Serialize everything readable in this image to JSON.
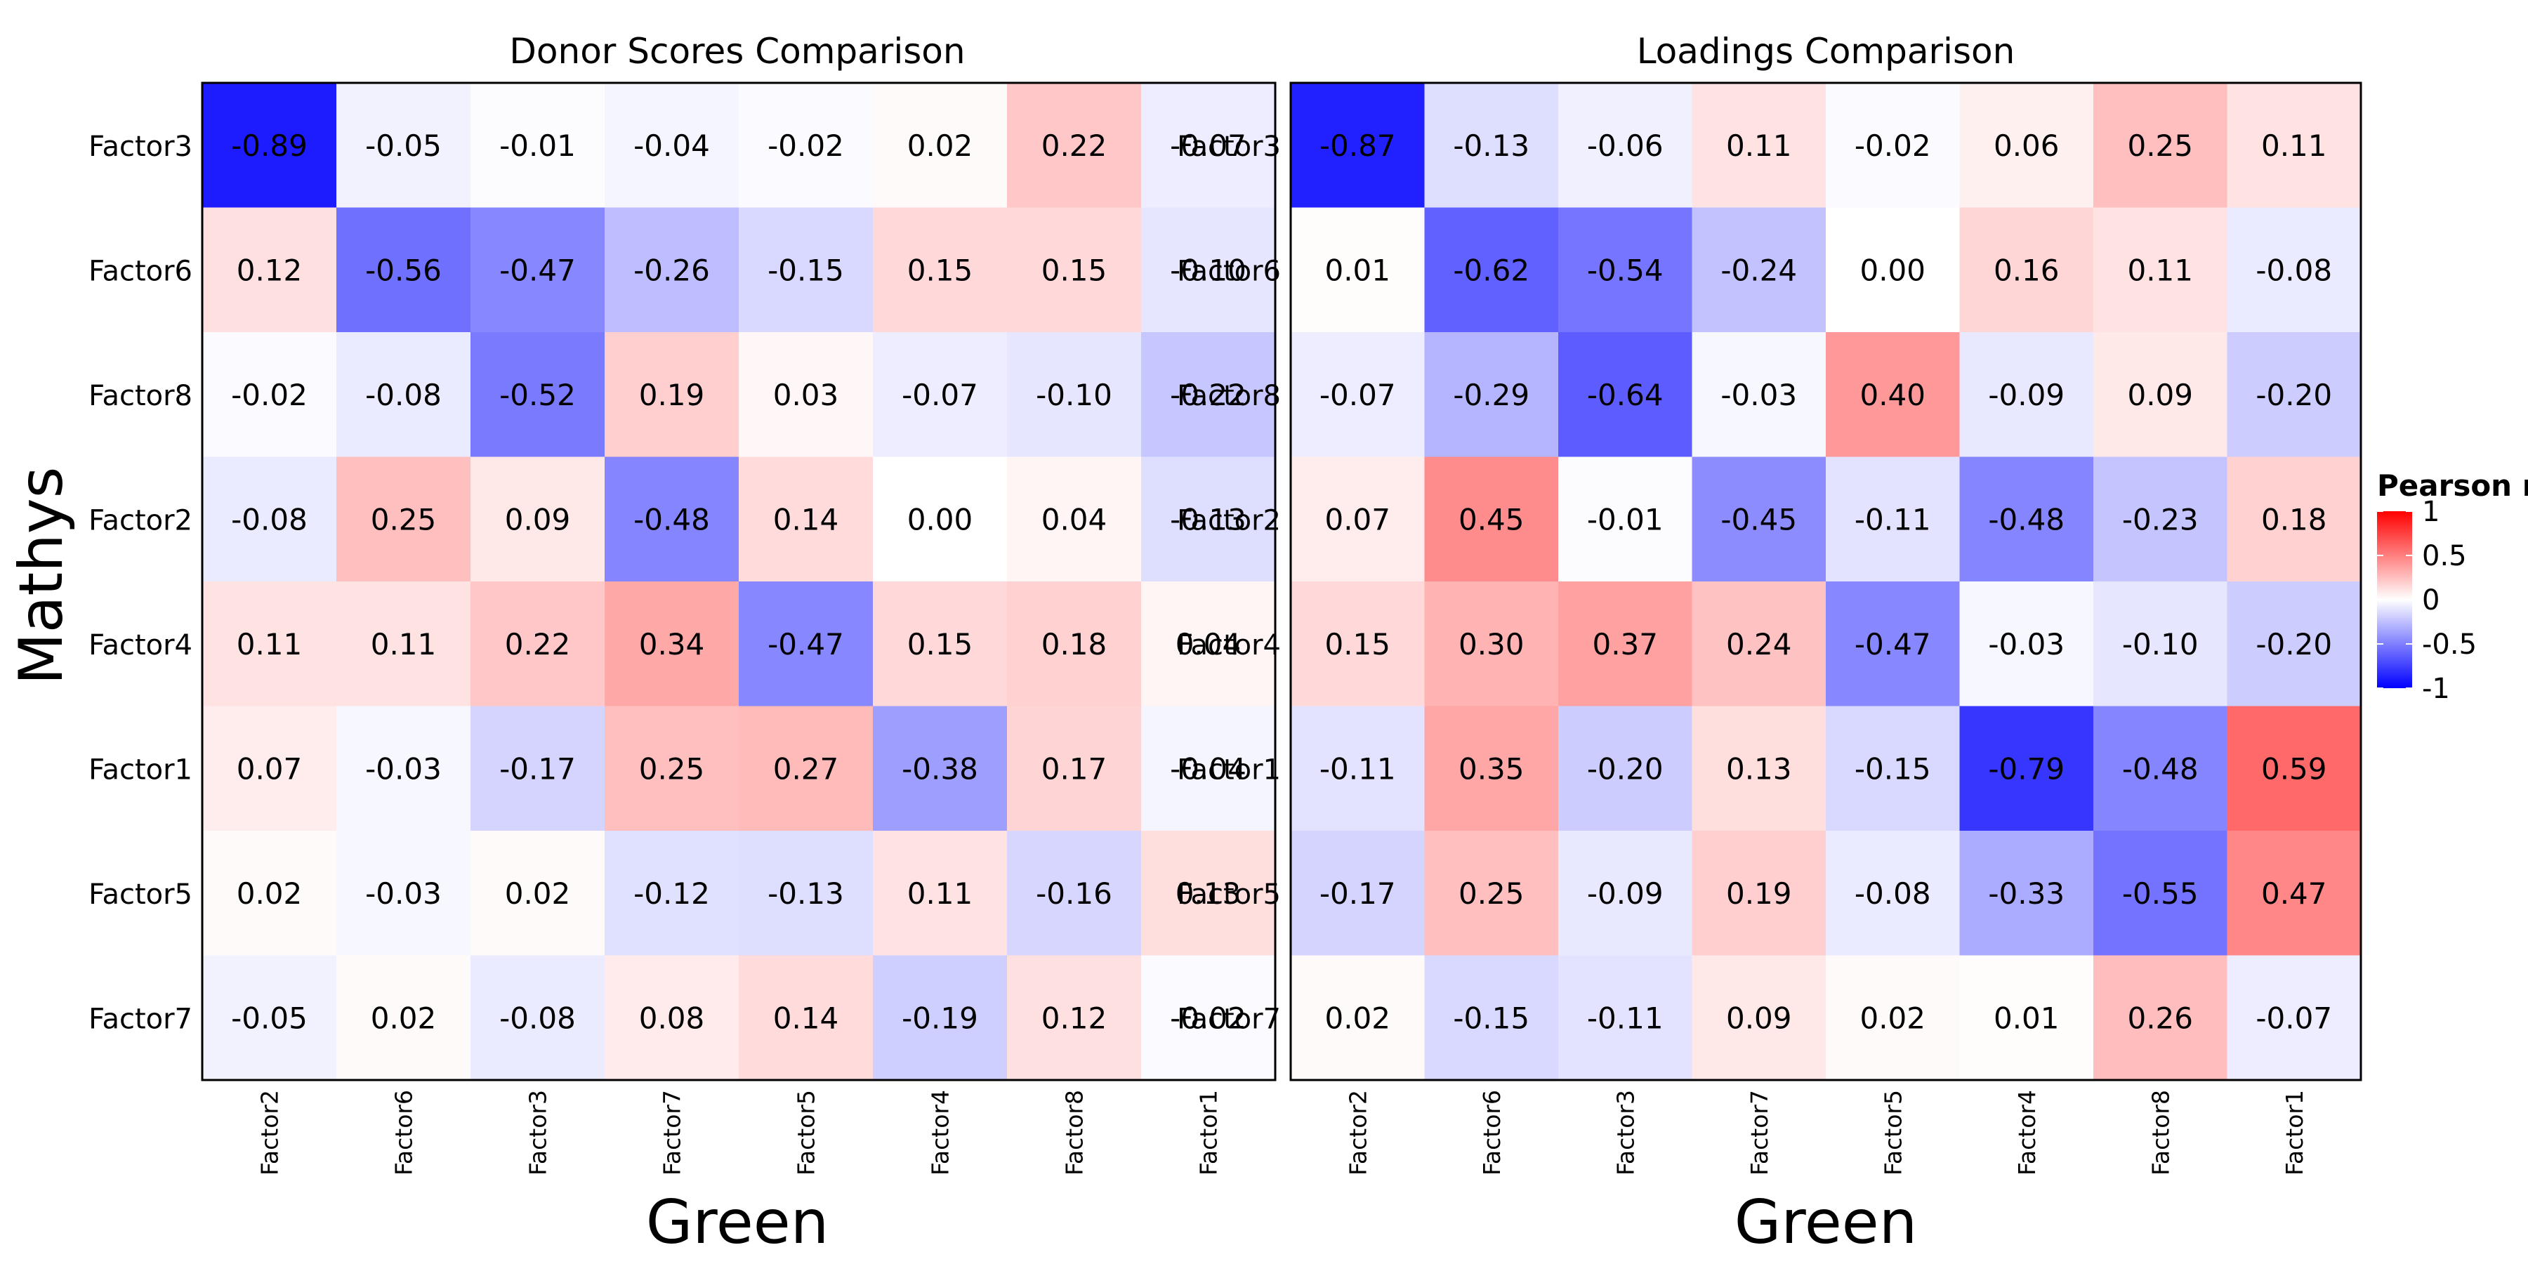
{
  "chart_data": {
    "type": "heatmap",
    "shared": {
      "ylabel": "Mathys",
      "xlabel": "Green",
      "row_labels": [
        "Factor3",
        "Factor6",
        "Factor8",
        "Factor2",
        "Factor4",
        "Factor1",
        "Factor5",
        "Factor7"
      ],
      "col_labels": [
        "Factor2",
        "Factor6",
        "Factor3",
        "Factor7",
        "Factor5",
        "Factor4",
        "Factor8",
        "Factor1"
      ],
      "color_scale": {
        "low": "#0000ff",
        "mid": "#ffffff",
        "high": "#ff0000",
        "limits": [
          -1,
          1
        ]
      }
    },
    "legend": {
      "title": "Pearson r",
      "placement": "right",
      "ticks": [
        1,
        0.5,
        0,
        -0.5,
        -1
      ],
      "tick_labels": [
        "1",
        "0.5",
        "0",
        "-0.5",
        "-1"
      ]
    },
    "panels": [
      {
        "title": "Donor Scores Comparison",
        "values": [
          [
            -0.89,
            -0.05,
            -0.01,
            -0.04,
            -0.02,
            0.02,
            0.22,
            -0.07
          ],
          [
            0.12,
            -0.56,
            -0.47,
            -0.26,
            -0.15,
            0.15,
            0.15,
            -0.1
          ],
          [
            -0.02,
            -0.08,
            -0.52,
            0.19,
            0.03,
            -0.07,
            -0.1,
            -0.22
          ],
          [
            -0.08,
            0.25,
            0.09,
            -0.48,
            0.14,
            0.0,
            0.04,
            -0.13
          ],
          [
            0.11,
            0.11,
            0.22,
            0.34,
            -0.47,
            0.15,
            0.18,
            0.04
          ],
          [
            0.07,
            -0.03,
            -0.17,
            0.25,
            0.27,
            -0.38,
            0.17,
            -0.04
          ],
          [
            0.02,
            -0.03,
            0.02,
            -0.12,
            -0.13,
            0.11,
            -0.16,
            0.13
          ],
          [
            -0.05,
            0.02,
            -0.08,
            0.08,
            0.14,
            -0.19,
            0.12,
            -0.02
          ]
        ]
      },
      {
        "title": "Loadings Comparison",
        "values": [
          [
            -0.87,
            -0.13,
            -0.06,
            0.11,
            -0.02,
            0.06,
            0.25,
            0.11
          ],
          [
            0.01,
            -0.62,
            -0.54,
            -0.24,
            0.0,
            0.16,
            0.11,
            -0.08
          ],
          [
            -0.07,
            -0.29,
            -0.64,
            -0.03,
            0.4,
            -0.09,
            0.09,
            -0.2
          ],
          [
            0.07,
            0.45,
            -0.01,
            -0.45,
            -0.11,
            -0.48,
            -0.23,
            0.18
          ],
          [
            0.15,
            0.3,
            0.37,
            0.24,
            -0.47,
            -0.03,
            -0.1,
            -0.2
          ],
          [
            -0.11,
            0.35,
            -0.2,
            0.13,
            -0.15,
            -0.79,
            -0.48,
            0.59
          ],
          [
            -0.17,
            0.25,
            -0.09,
            0.19,
            -0.08,
            -0.33,
            -0.55,
            0.47
          ],
          [
            0.02,
            -0.15,
            -0.11,
            0.09,
            0.02,
            0.01,
            0.26,
            -0.07
          ]
        ]
      }
    ]
  }
}
